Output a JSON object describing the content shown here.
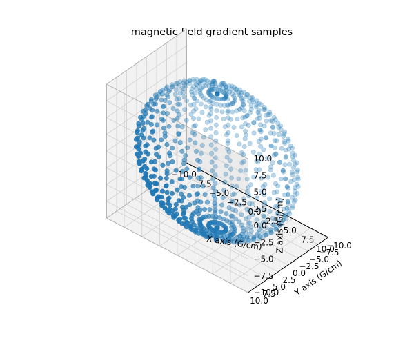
{
  "chart_data": {
    "type": "scatter",
    "projection": "3d",
    "title": "magnetic field gradient samples",
    "xlabel": "X axis (G/cm)",
    "ylabel": "Y axis (G/cm)",
    "zlabel": "Z axis (G/cm)",
    "xlim": [
      -10,
      10
    ],
    "ylim": [
      -10,
      10
    ],
    "zlim": [
      -10,
      10
    ],
    "xticks": [
      "−10.0",
      "−7.5",
      "−5.0",
      "−2.5",
      "0.0",
      "2.5",
      "5.0",
      "7.5",
      "10.0"
    ],
    "yticks": [
      "−10.0",
      "−7.5",
      "−5.0",
      "−2.5",
      "0.0",
      "2.5",
      "5.0",
      "7.5",
      "10.0"
    ],
    "zticks": [
      "−10.0",
      "−7.5",
      "−5.0",
      "−2.5",
      "0.0",
      "2.5",
      "5.0",
      "7.5",
      "10.0"
    ],
    "grid": true,
    "marker_color": "#1f77b4",
    "series": [
      {
        "shape": "sphere",
        "radius": 10,
        "center": [
          0,
          0,
          0
        ],
        "theta_samples": 30,
        "phi_samples": 30
      }
    ]
  }
}
